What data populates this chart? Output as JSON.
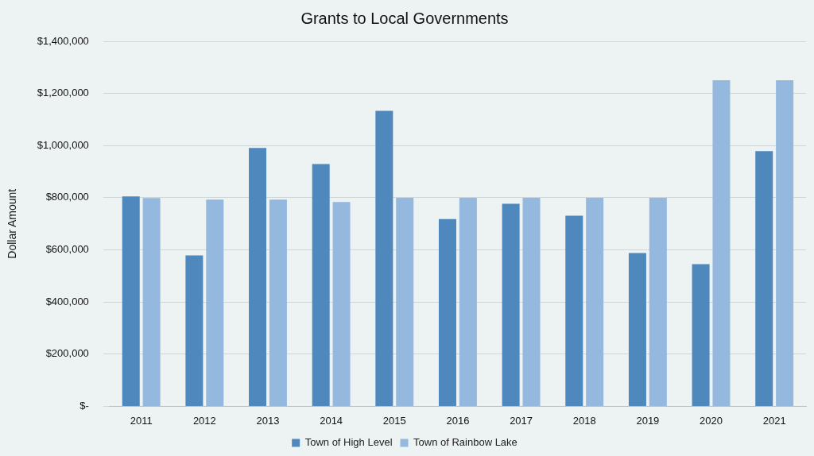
{
  "chart_data": {
    "type": "bar",
    "title": "Grants to Local Governments",
    "ylabel": "Dollar Amount",
    "categories": [
      "2011",
      "2012",
      "2013",
      "2014",
      "2015",
      "2016",
      "2017",
      "2018",
      "2019",
      "2020",
      "2021"
    ],
    "series": [
      {
        "name": "Town of High Level",
        "color": "#4f88bd",
        "values": [
          805000,
          579000,
          991000,
          929000,
          1133000,
          718000,
          777000,
          731000,
          588000,
          545000,
          979000
        ]
      },
      {
        "name": "Town of Rainbow Lake",
        "color": "#95b8de",
        "values": [
          799000,
          793000,
          793000,
          784000,
          800000,
          800000,
          800000,
          800000,
          800000,
          1251000,
          1251000
        ]
      }
    ],
    "ylim": [
      0,
      1400000
    ],
    "yticks": [
      {
        "value": 0,
        "label": "$-"
      },
      {
        "value": 200000,
        "label": "$200,000"
      },
      {
        "value": 400000,
        "label": "$400,000"
      },
      {
        "value": 600000,
        "label": "$600,000"
      },
      {
        "value": 800000,
        "label": "$800,000"
      },
      {
        "value": 1000000,
        "label": "$1,000,000"
      },
      {
        "value": 1200000,
        "label": "$1,200,000"
      },
      {
        "value": 1400000,
        "label": "$1,400,000"
      }
    ],
    "grid": "y",
    "legend": "bottom"
  }
}
